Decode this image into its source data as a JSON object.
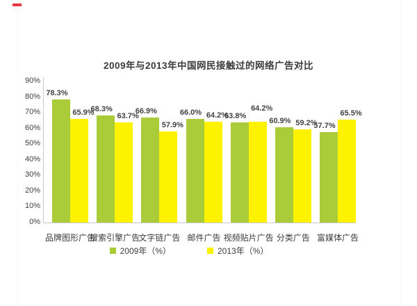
{
  "page": {
    "background": "#ffffff",
    "red_dash_color": "#e8383d"
  },
  "chart_data": {
    "type": "bar",
    "title": "2009年与2013年中国网民接触过的网络广告对比",
    "categories": [
      "品牌图形广告",
      "搜索引擎广告",
      "文字链广告",
      "邮件广告",
      "视频贴片广告",
      "分类广告",
      "富媒体广告"
    ],
    "series": [
      {
        "name": "2009年（%）",
        "color": "#a9cc38",
        "values": [
          78.3,
          68.3,
          66.9,
          66.0,
          63.8,
          60.9,
          57.7
        ]
      },
      {
        "name": "2013年（%）",
        "color": "#fdf200",
        "values": [
          65.9,
          63.7,
          57.9,
          64.2,
          64.2,
          59.2,
          65.5
        ]
      }
    ],
    "value_label_format": "{value}%",
    "xlabel": "",
    "ylabel": "",
    "y_axis": {
      "min": 0,
      "max": 90,
      "step": 10,
      "ticks": [
        "0%",
        "10%",
        "20%",
        "30%",
        "40%",
        "50%",
        "60%",
        "70%",
        "80%",
        "90%"
      ]
    },
    "grid": false,
    "legend_position": "bottom",
    "axis_line_color": "#c9c9c9",
    "label_text_color": "#424242"
  }
}
